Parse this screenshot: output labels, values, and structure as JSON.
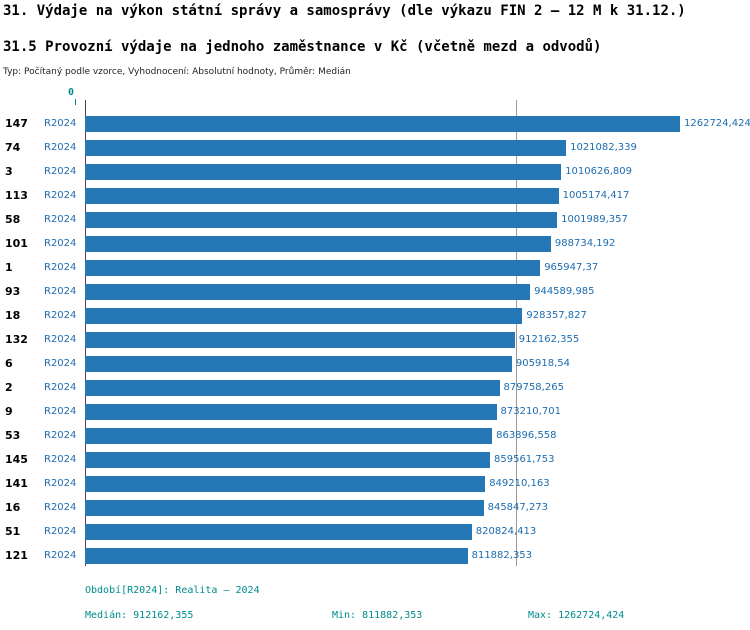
{
  "header": {
    "title_line1": "31. Výdaje na výkon státní správy a samosprávy (dle výkazu FIN 2 – 12 M k 31.12.)",
    "title_line2": "31.5 Provozní výdaje na jednoho zaměstnance v Kč (včetně mezd a odvodů)",
    "subtitle": "Typ: Počítaný podle vzorce, Vyhodnocení: Absolutní hodnoty, Průměr: Medián"
  },
  "chart_data": {
    "type": "bar",
    "orientation": "horizontal",
    "title": "31.5 Provozní výdaje na jednoho zaměstnance v Kč (včetně mezd a odvodů)",
    "series_label": "R2024",
    "axis_zero_label": "0",
    "categories": [
      "147",
      "74",
      "3",
      "113",
      "58",
      "101",
      "1",
      "93",
      "18",
      "132",
      "6",
      "2",
      "9",
      "53",
      "145",
      "141",
      "16",
      "51",
      "121"
    ],
    "values": [
      1262724.424,
      1021082.339,
      1010626.809,
      1005174.417,
      1001989.357,
      988734.192,
      965947.37,
      944589.985,
      928357.827,
      912162.355,
      905918.54,
      879758.265,
      873210.701,
      863896.558,
      859561.753,
      849210.163,
      845847.273,
      820824.413,
      811882.353
    ],
    "value_labels": [
      "1262724,424",
      "1021082,339",
      "1010626,809",
      "1005174,417",
      "1001989,357",
      "988734,192",
      "965947,37",
      "944589,985",
      "928357,827",
      "912162,355",
      "905918,54",
      "879758,265",
      "873210,701",
      "863896,558",
      "859561,753",
      "849210,163",
      "845847,273",
      "820824,413",
      "811882,353"
    ],
    "xlim": [
      0,
      1262724.424
    ],
    "median": 912162.355,
    "grid": false,
    "legend_position": "none",
    "bar_color": "#2577b5",
    "value_label_color": "#1c6cb0",
    "median_line_color": "#9a9a9a"
  },
  "footer": {
    "period_label": "Období[R2024]: Realita – 2024",
    "median_label": "Medián: 912162,355",
    "min_label": "Min: 811882,353",
    "max_label": "Max: 1262724,424"
  }
}
